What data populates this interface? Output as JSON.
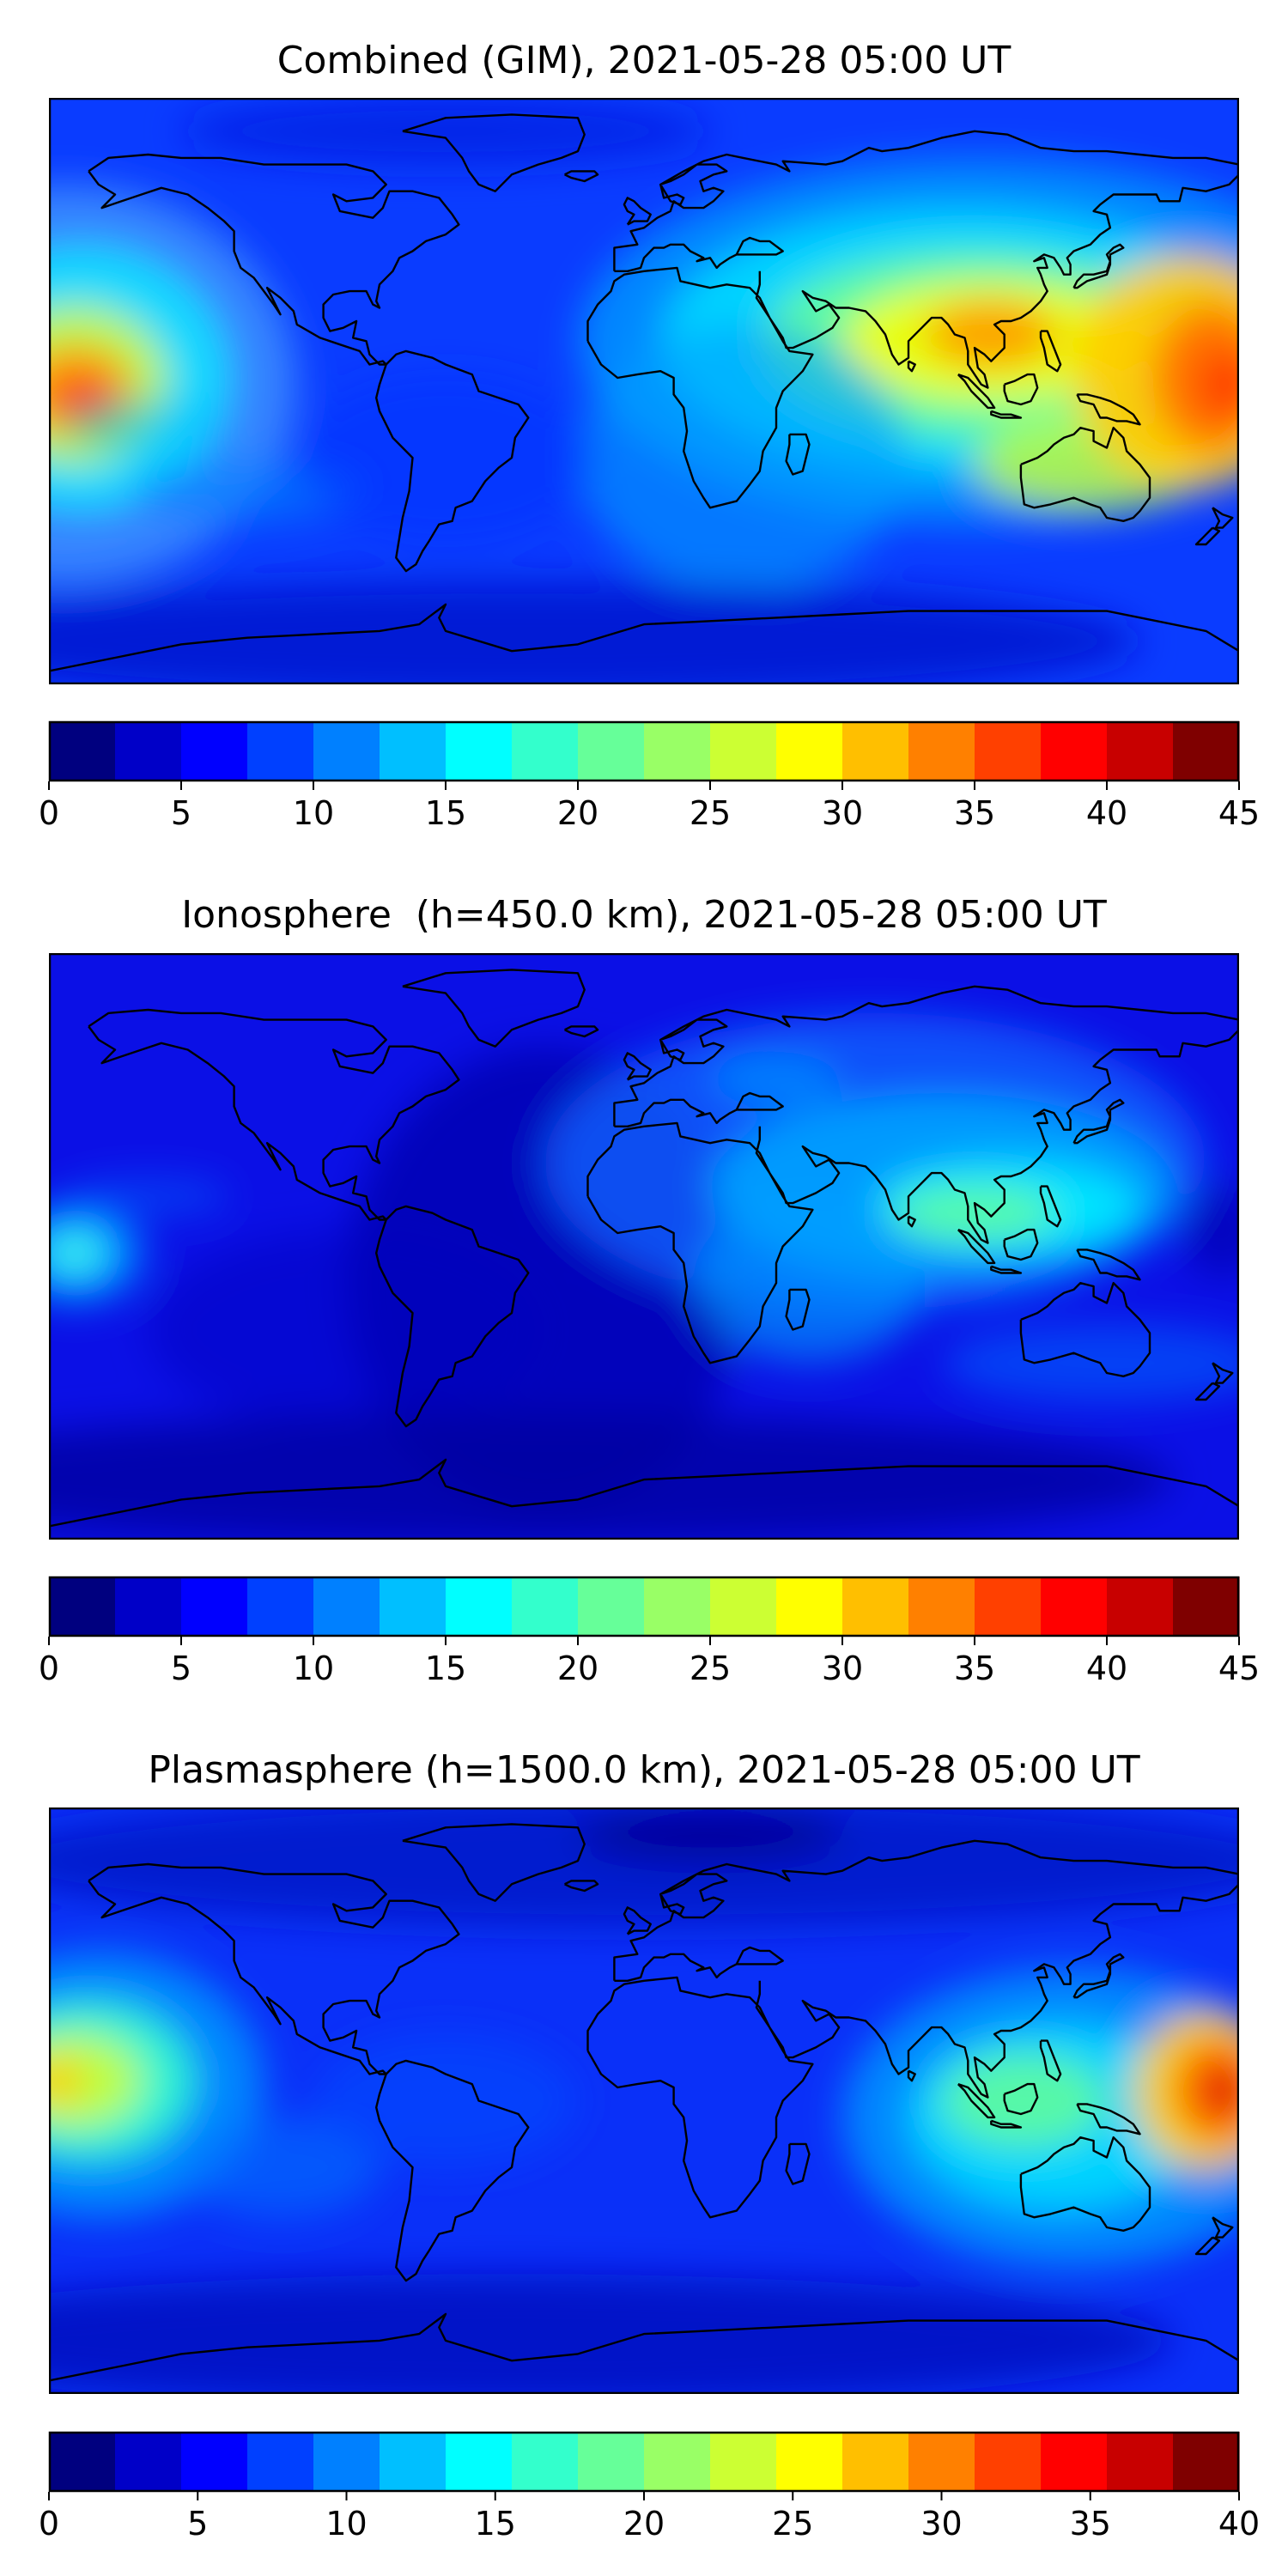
{
  "panels": [
    {
      "title": "Combined (GIM), 2021-05-28 05:00 UT",
      "colorbar": {
        "colors": [
          "#00007f",
          "#0000c8",
          "#0000ff",
          "#0040ff",
          "#0080ff",
          "#00bfff",
          "#00ffff",
          "#33ffcc",
          "#66ff99",
          "#99ff66",
          "#ccff33",
          "#ffff00",
          "#ffbf00",
          "#ff8000",
          "#ff4000",
          "#ff0000",
          "#c80000",
          "#7f0000"
        ],
        "ticks": [
          "0",
          "5",
          "10",
          "15",
          "20",
          "25",
          "30",
          "35",
          "40",
          "45"
        ]
      },
      "field": {
        "background": "#0a3cff",
        "blobs": [
          {
            "lon": -175,
            "lat": 2,
            "rx": 70,
            "ry": 60,
            "color": "#3a8cff",
            "opacity": 0.9
          },
          {
            "lon": -170,
            "lat": 4,
            "rx": 45,
            "ry": 40,
            "color": "#00e6ff",
            "opacity": 0.85
          },
          {
            "lon": -172,
            "lat": 2,
            "rx": 28,
            "ry": 24,
            "color": "#ccff33",
            "opacity": 0.9
          },
          {
            "lon": -172,
            "lat": 0,
            "rx": 18,
            "ry": 14,
            "color": "#ff9900",
            "opacity": 0.95
          },
          {
            "lon": -170,
            "lat": -2,
            "rx": 9,
            "ry": 7,
            "color": "#ff3300",
            "opacity": 0.95
          },
          {
            "lon": -120,
            "lat": -30,
            "rx": 35,
            "ry": 10,
            "color": "#0080ff",
            "opacity": 0.6
          },
          {
            "lon": -150,
            "lat": -10,
            "rx": 25,
            "ry": 8,
            "color": "#00bfff",
            "opacity": 0.55
          },
          {
            "lon": 100,
            "lat": 15,
            "rx": 120,
            "ry": 55,
            "color": "#0090ff",
            "opacity": 0.9
          },
          {
            "lon": 95,
            "lat": 15,
            "rx": 90,
            "ry": 40,
            "color": "#00e0ff",
            "opacity": 0.85
          },
          {
            "lon": 100,
            "lat": 14,
            "rx": 65,
            "ry": 28,
            "color": "#66ff99",
            "opacity": 0.9
          },
          {
            "lon": 105,
            "lat": 15,
            "rx": 45,
            "ry": 18,
            "color": "#eeff00",
            "opacity": 0.95
          },
          {
            "lon": 105,
            "lat": 17,
            "rx": 20,
            "ry": 10,
            "color": "#ff9900",
            "opacity": 0.9
          },
          {
            "lon": 135,
            "lat": -22,
            "rx": 35,
            "ry": 14,
            "color": "#ccff33",
            "opacity": 0.8
          },
          {
            "lon": 165,
            "lat": 6,
            "rx": 35,
            "ry": 35,
            "color": "#ffcc00",
            "opacity": 0.95
          },
          {
            "lon": 172,
            "lat": 4,
            "rx": 18,
            "ry": 22,
            "color": "#ff7000",
            "opacity": 0.95
          },
          {
            "lon": 176,
            "lat": 2,
            "rx": 8,
            "ry": 10,
            "color": "#ff3300",
            "opacity": 0.9
          },
          {
            "lon": 30,
            "lat": -20,
            "rx": 50,
            "ry": 40,
            "color": "#00a0ff",
            "opacity": 0.6
          },
          {
            "lon": -60,
            "lat": -20,
            "rx": 45,
            "ry": 25,
            "color": "#0030ff",
            "opacity": 0.5
          },
          {
            "lon": -40,
            "lat": -75,
            "rx": 190,
            "ry": 18,
            "color": "#0014d0",
            "opacity": 0.9
          },
          {
            "lon": -60,
            "lat": 78,
            "rx": 80,
            "ry": 10,
            "color": "#0020e0",
            "opacity": 0.7
          }
        ]
      }
    },
    {
      "title": "Ionosphere  (h=450.0 km), 2021-05-28 05:00 UT",
      "colorbar": {
        "colors": [
          "#00007f",
          "#0000c8",
          "#0000ff",
          "#0040ff",
          "#0080ff",
          "#00bfff",
          "#00ffff",
          "#33ffcc",
          "#66ff99",
          "#99ff66",
          "#ccff33",
          "#ffff00",
          "#ffbf00",
          "#ff8000",
          "#ff4000",
          "#ff0000",
          "#c80000",
          "#7f0000"
        ],
        "ticks": [
          "0",
          "5",
          "10",
          "15",
          "20",
          "25",
          "30",
          "35",
          "40",
          "45"
        ]
      },
      "field": {
        "background": "#0b10e6",
        "blobs": [
          {
            "lon": -30,
            "lat": -10,
            "rx": 60,
            "ry": 70,
            "color": "#0000b0",
            "opacity": 0.8
          },
          {
            "lon": -90,
            "lat": -25,
            "rx": 60,
            "ry": 30,
            "color": "#0000c0",
            "opacity": 0.5
          },
          {
            "lon": -40,
            "lat": -70,
            "rx": 200,
            "ry": 20,
            "color": "#0000a0",
            "opacity": 0.8
          },
          {
            "lon": -172,
            "lat": -2,
            "rx": 22,
            "ry": 16,
            "color": "#0070ff",
            "opacity": 0.9
          },
          {
            "lon": -172,
            "lat": -2,
            "rx": 12,
            "ry": 9,
            "color": "#00e0ff",
            "opacity": 0.95
          },
          {
            "lon": -172,
            "lat": -2,
            "rx": 5,
            "ry": 3,
            "color": "#66ffcc",
            "opacity": 0.95
          },
          {
            "lon": 70,
            "lat": 25,
            "rx": 100,
            "ry": 45,
            "color": "#1060ff",
            "opacity": 0.8
          },
          {
            "lon": 90,
            "lat": 18,
            "rx": 70,
            "ry": 28,
            "color": "#00a8ff",
            "opacity": 0.85
          },
          {
            "lon": 110,
            "lat": 12,
            "rx": 40,
            "ry": 14,
            "color": "#00f0ff",
            "opacity": 0.85
          },
          {
            "lon": 100,
            "lat": 10,
            "rx": 25,
            "ry": 8,
            "color": "#66ff99",
            "opacity": 0.85
          },
          {
            "lon": 50,
            "lat": -10,
            "rx": 35,
            "ry": 25,
            "color": "#00a0ff",
            "opacity": 0.6
          },
          {
            "lon": 40,
            "lat": 50,
            "rx": 20,
            "ry": 8,
            "color": "#0090ff",
            "opacity": 0.7
          },
          {
            "lon": 140,
            "lat": -35,
            "rx": 50,
            "ry": 12,
            "color": "#0060ff",
            "opacity": 0.6
          },
          {
            "lon": -150,
            "lat": 15,
            "rx": 25,
            "ry": 6,
            "color": "#0060ff",
            "opacity": 0.5
          },
          {
            "lon": 175,
            "lat": 5,
            "rx": 12,
            "ry": 14,
            "color": "#0000b0",
            "opacity": 0.7
          }
        ]
      }
    },
    {
      "title": "Plasmasphere (h=1500.0 km), 2021-05-28 05:00 UT",
      "colorbar": {
        "colors": [
          "#00007f",
          "#0000c8",
          "#0000ff",
          "#0040ff",
          "#0080ff",
          "#00bfff",
          "#00ffff",
          "#33ffcc",
          "#66ff99",
          "#99ff66",
          "#ccff33",
          "#ffff00",
          "#ffbf00",
          "#ff8000",
          "#ff4000",
          "#ff0000",
          "#c80000",
          "#7f0000"
        ],
        "ticks": [
          "0",
          "5",
          "10",
          "15",
          "20",
          "25",
          "30",
          "35",
          "40"
        ]
      },
      "field": {
        "background": "#0a30f8",
        "blobs": [
          {
            "lon": 0,
            "lat": 72,
            "rx": 200,
            "ry": 20,
            "color": "#0014c8",
            "opacity": 0.85
          },
          {
            "lon": 20,
            "lat": 80,
            "rx": 40,
            "ry": 8,
            "color": "#000090",
            "opacity": 0.8
          },
          {
            "lon": -40,
            "lat": -72,
            "rx": 200,
            "ry": 20,
            "color": "#0010c0",
            "opacity": 0.85
          },
          {
            "lon": -165,
            "lat": 5,
            "rx": 50,
            "ry": 40,
            "color": "#0090ff",
            "opacity": 0.9
          },
          {
            "lon": -168,
            "lat": 6,
            "rx": 32,
            "ry": 24,
            "color": "#33ffcc",
            "opacity": 0.9
          },
          {
            "lon": -172,
            "lat": 6,
            "rx": 20,
            "ry": 14,
            "color": "#ccff33",
            "opacity": 0.9
          },
          {
            "lon": -178,
            "lat": 6,
            "rx": 8,
            "ry": 8,
            "color": "#ffcc00",
            "opacity": 0.9
          },
          {
            "lon": 130,
            "lat": -5,
            "rx": 70,
            "ry": 45,
            "color": "#0090ff",
            "opacity": 0.9
          },
          {
            "lon": 125,
            "lat": -5,
            "rx": 45,
            "ry": 28,
            "color": "#00e0ff",
            "opacity": 0.85
          },
          {
            "lon": 115,
            "lat": 0,
            "rx": 25,
            "ry": 14,
            "color": "#66ff99",
            "opacity": 0.85
          },
          {
            "lon": 170,
            "lat": 3,
            "rx": 22,
            "ry": 24,
            "color": "#ffcc00",
            "opacity": 0.95
          },
          {
            "lon": 174,
            "lat": 3,
            "rx": 13,
            "ry": 15,
            "color": "#ff5500",
            "opacity": 0.95
          },
          {
            "lon": 176,
            "lat": 3,
            "rx": 6,
            "ry": 6,
            "color": "#d00000",
            "opacity": 0.95
          },
          {
            "lon": -110,
            "lat": -20,
            "rx": 30,
            "ry": 15,
            "color": "#0070ff",
            "opacity": 0.6
          },
          {
            "lon": -60,
            "lat": 0,
            "rx": 40,
            "ry": 20,
            "color": "#0050ff",
            "opacity": 0.5
          }
        ]
      }
    }
  ]
}
